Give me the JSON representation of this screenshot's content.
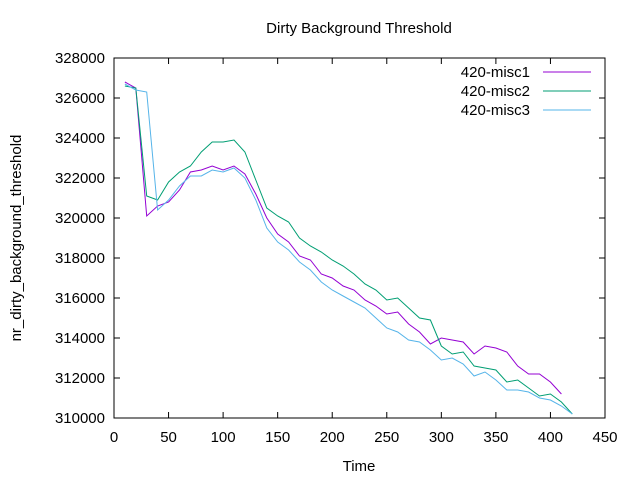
{
  "chart_data": {
    "type": "line",
    "title": "Dirty Background Threshold",
    "xlabel": "Time",
    "ylabel": "nr_dirty_background_threshold",
    "xlim": [
      0,
      450
    ],
    "ylim": [
      310000,
      328000
    ],
    "xticks": [
      0,
      50,
      100,
      150,
      200,
      250,
      300,
      350,
      400,
      450
    ],
    "yticks": [
      310000,
      312000,
      314000,
      316000,
      318000,
      320000,
      322000,
      324000,
      326000,
      328000
    ],
    "legend_position": "top-right",
    "grid": false,
    "series": [
      {
        "name": "420-misc1",
        "color": "#9400d3",
        "points": [
          [
            10,
            326800
          ],
          [
            20,
            326500
          ],
          [
            30,
            320100
          ],
          [
            40,
            320600
          ],
          [
            50,
            320800
          ],
          [
            60,
            321400
          ],
          [
            70,
            322300
          ],
          [
            80,
            322400
          ],
          [
            90,
            322600
          ],
          [
            100,
            322400
          ],
          [
            110,
            322600
          ],
          [
            120,
            322200
          ],
          [
            130,
            321200
          ],
          [
            140,
            320000
          ],
          [
            150,
            319200
          ],
          [
            160,
            318800
          ],
          [
            170,
            318100
          ],
          [
            180,
            317900
          ],
          [
            190,
            317200
          ],
          [
            200,
            317000
          ],
          [
            210,
            316600
          ],
          [
            220,
            316400
          ],
          [
            230,
            315900
          ],
          [
            240,
            315600
          ],
          [
            250,
            315200
          ],
          [
            260,
            315300
          ],
          [
            270,
            314700
          ],
          [
            280,
            314300
          ],
          [
            290,
            313700
          ],
          [
            300,
            314000
          ],
          [
            310,
            313900
          ],
          [
            320,
            313800
          ],
          [
            330,
            313200
          ],
          [
            340,
            313600
          ],
          [
            350,
            313500
          ],
          [
            360,
            313300
          ],
          [
            370,
            312600
          ],
          [
            380,
            312200
          ],
          [
            390,
            312200
          ],
          [
            400,
            311800
          ],
          [
            410,
            311200
          ]
        ]
      },
      {
        "name": "420-misc2",
        "color": "#009e73",
        "points": [
          [
            10,
            326600
          ],
          [
            20,
            326500
          ],
          [
            30,
            321100
          ],
          [
            40,
            320900
          ],
          [
            50,
            321800
          ],
          [
            60,
            322300
          ],
          [
            70,
            322600
          ],
          [
            80,
            323300
          ],
          [
            90,
            323800
          ],
          [
            100,
            323800
          ],
          [
            110,
            323900
          ],
          [
            120,
            323300
          ],
          [
            130,
            321900
          ],
          [
            140,
            320500
          ],
          [
            150,
            320100
          ],
          [
            160,
            319800
          ],
          [
            170,
            319000
          ],
          [
            180,
            318600
          ],
          [
            190,
            318300
          ],
          [
            200,
            317900
          ],
          [
            210,
            317600
          ],
          [
            220,
            317200
          ],
          [
            230,
            316700
          ],
          [
            240,
            316400
          ],
          [
            250,
            315900
          ],
          [
            260,
            316000
          ],
          [
            270,
            315500
          ],
          [
            280,
            315000
          ],
          [
            290,
            314900
          ],
          [
            300,
            313600
          ],
          [
            310,
            313200
          ],
          [
            320,
            313300
          ],
          [
            330,
            312600
          ],
          [
            340,
            312500
          ],
          [
            350,
            312400
          ],
          [
            360,
            311800
          ],
          [
            370,
            311900
          ],
          [
            380,
            311500
          ],
          [
            390,
            311100
          ],
          [
            400,
            311200
          ],
          [
            410,
            310800
          ],
          [
            420,
            310200
          ]
        ]
      },
      {
        "name": "420-misc3",
        "color": "#56b4e9",
        "points": [
          [
            10,
            326700
          ],
          [
            20,
            326400
          ],
          [
            30,
            326300
          ],
          [
            40,
            320400
          ],
          [
            50,
            320900
          ],
          [
            60,
            321600
          ],
          [
            70,
            322100
          ],
          [
            80,
            322100
          ],
          [
            90,
            322400
          ],
          [
            100,
            322300
          ],
          [
            110,
            322500
          ],
          [
            120,
            322000
          ],
          [
            130,
            320900
          ],
          [
            140,
            319500
          ],
          [
            150,
            318800
          ],
          [
            160,
            318400
          ],
          [
            170,
            317800
          ],
          [
            180,
            317400
          ],
          [
            190,
            316800
          ],
          [
            200,
            316400
          ],
          [
            210,
            316100
          ],
          [
            220,
            315800
          ],
          [
            230,
            315500
          ],
          [
            240,
            315000
          ],
          [
            250,
            314500
          ],
          [
            260,
            314300
          ],
          [
            270,
            313900
          ],
          [
            280,
            313800
          ],
          [
            290,
            313400
          ],
          [
            300,
            312900
          ],
          [
            310,
            313000
          ],
          [
            320,
            312700
          ],
          [
            330,
            312100
          ],
          [
            340,
            312300
          ],
          [
            350,
            311900
          ],
          [
            360,
            311400
          ],
          [
            370,
            311400
          ],
          [
            380,
            311300
          ],
          [
            390,
            311000
          ],
          [
            400,
            310900
          ],
          [
            410,
            310600
          ],
          [
            420,
            310200
          ]
        ]
      }
    ]
  }
}
